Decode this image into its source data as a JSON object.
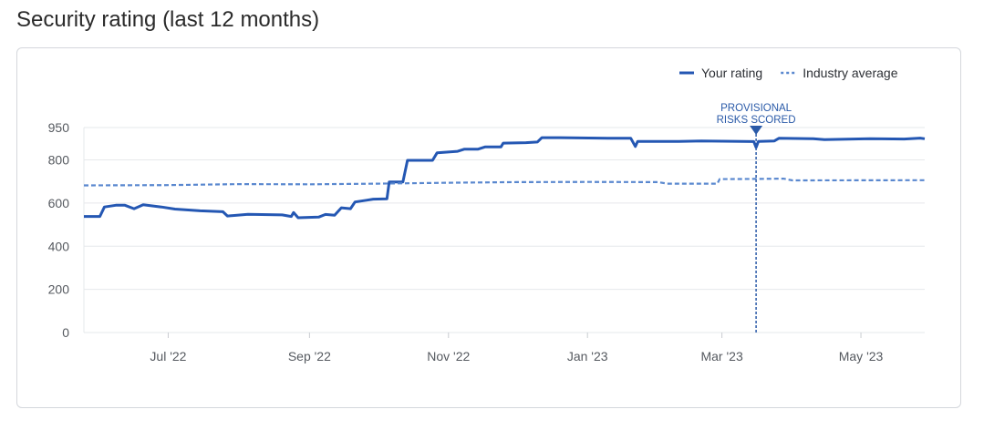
{
  "page": {
    "title": "Security rating (last 12 months)"
  },
  "chart_data": {
    "type": "line",
    "ylim": [
      0,
      950
    ],
    "yticks": [
      0,
      200,
      400,
      600,
      800,
      950
    ],
    "x_range": [
      "2022-05-25",
      "2023-05-29"
    ],
    "xticks": [
      {
        "date": "2022-07-01",
        "label": "Jul '22"
      },
      {
        "date": "2022-09-01",
        "label": "Sep '22"
      },
      {
        "date": "2022-11-01",
        "label": "Nov '22"
      },
      {
        "date": "2023-01-01",
        "label": "Jan '23"
      },
      {
        "date": "2023-03-01",
        "label": "Mar '23"
      },
      {
        "date": "2023-05-01",
        "label": "May '23"
      }
    ],
    "grid": true,
    "legend_position": "top-right",
    "colors": {
      "rating": "#2457b3",
      "industry": "#5a88cf",
      "grid": "#e6e8eb",
      "annotation": "#2a5aa8"
    },
    "series": [
      {
        "name": "Your rating",
        "style": "solid",
        "points": [
          [
            "2022-05-25",
            538
          ],
          [
            "2022-06-01",
            538
          ],
          [
            "2022-06-03",
            582
          ],
          [
            "2022-06-08",
            590
          ],
          [
            "2022-06-12",
            590
          ],
          [
            "2022-06-16",
            574
          ],
          [
            "2022-06-20",
            592
          ],
          [
            "2022-06-28",
            582
          ],
          [
            "2022-07-04",
            572
          ],
          [
            "2022-07-15",
            564
          ],
          [
            "2022-07-25",
            560
          ],
          [
            "2022-07-27",
            540
          ],
          [
            "2022-08-05",
            548
          ],
          [
            "2022-08-20",
            545
          ],
          [
            "2022-08-24",
            538
          ],
          [
            "2022-08-25",
            556
          ],
          [
            "2022-08-27",
            532
          ],
          [
            "2022-09-05",
            535
          ],
          [
            "2022-09-08",
            547
          ],
          [
            "2022-09-12",
            544
          ],
          [
            "2022-09-15",
            578
          ],
          [
            "2022-09-19",
            574
          ],
          [
            "2022-09-21",
            605
          ],
          [
            "2022-09-26",
            613
          ],
          [
            "2022-09-29",
            618
          ],
          [
            "2022-10-05",
            620
          ],
          [
            "2022-10-06",
            698
          ],
          [
            "2022-10-12",
            698
          ],
          [
            "2022-10-14",
            798
          ],
          [
            "2022-10-25",
            798
          ],
          [
            "2022-10-27",
            833
          ],
          [
            "2022-11-05",
            840
          ],
          [
            "2022-11-08",
            850
          ],
          [
            "2022-11-14",
            850
          ],
          [
            "2022-11-17",
            860
          ],
          [
            "2022-11-24",
            860
          ],
          [
            "2022-11-25",
            878
          ],
          [
            "2022-12-05",
            880
          ],
          [
            "2022-12-10",
            883
          ],
          [
            "2022-12-12",
            903
          ],
          [
            "2022-12-20",
            903
          ],
          [
            "2023-01-10",
            900
          ],
          [
            "2023-01-20",
            900
          ],
          [
            "2023-01-22",
            862
          ],
          [
            "2023-01-23",
            886
          ],
          [
            "2023-02-10",
            886
          ],
          [
            "2023-02-20",
            888
          ],
          [
            "2023-03-15",
            885
          ],
          [
            "2023-03-16",
            858
          ],
          [
            "2023-03-17",
            886
          ],
          [
            "2023-03-24",
            888
          ],
          [
            "2023-03-26",
            900
          ],
          [
            "2023-04-10",
            898
          ],
          [
            "2023-04-15",
            894
          ],
          [
            "2023-04-25",
            896
          ],
          [
            "2023-05-05",
            898
          ],
          [
            "2023-05-20",
            897
          ],
          [
            "2023-05-27",
            901
          ],
          [
            "2023-05-29",
            898
          ]
        ]
      },
      {
        "name": "Industry average",
        "style": "dotted",
        "points": [
          [
            "2022-05-25",
            682
          ],
          [
            "2022-07-01",
            683
          ],
          [
            "2022-08-01",
            688
          ],
          [
            "2022-09-01",
            687
          ],
          [
            "2022-10-01",
            690
          ],
          [
            "2022-11-01",
            694
          ],
          [
            "2022-12-01",
            697
          ],
          [
            "2023-01-01",
            698
          ],
          [
            "2023-02-01",
            697
          ],
          [
            "2023-02-05",
            690
          ],
          [
            "2023-02-27",
            690
          ],
          [
            "2023-02-28",
            711
          ],
          [
            "2023-03-15",
            712
          ],
          [
            "2023-03-28",
            713
          ],
          [
            "2023-04-01",
            705
          ],
          [
            "2023-05-29",
            706
          ]
        ]
      }
    ],
    "annotations": [
      {
        "date": "2023-03-16",
        "label_lines": [
          "PROVISIONAL",
          "RISKS SCORED"
        ]
      }
    ]
  }
}
